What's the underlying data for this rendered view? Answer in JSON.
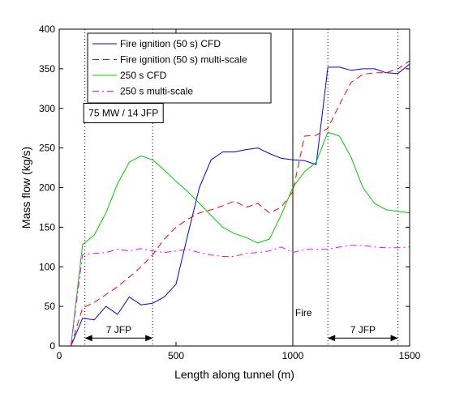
{
  "chart_data": {
    "type": "line",
    "title": "",
    "xlabel": "Length along tunnel (m)",
    "ylabel": "Mass flow (kg/s)",
    "xlim": [
      0,
      1500
    ],
    "ylim": [
      0,
      400
    ],
    "xticks": [
      0,
      500,
      1000,
      1500
    ],
    "yticks": [
      0,
      50,
      100,
      150,
      200,
      250,
      300,
      350,
      400
    ],
    "grid": false,
    "legend_position": "top-left",
    "series": [
      {
        "name": "Fire ignition (50 s) CFD",
        "color": "#0000ff",
        "dash": "solid",
        "x": [
          50,
          100,
          150,
          200,
          250,
          300,
          350,
          400,
          450,
          500,
          550,
          600,
          650,
          700,
          750,
          800,
          850,
          900,
          950,
          1000,
          1050,
          1100,
          1150,
          1200,
          1250,
          1300,
          1350,
          1400,
          1450,
          1500
        ],
        "y": [
          0,
          35,
          33,
          50,
          40,
          62,
          52,
          54,
          62,
          78,
          140,
          200,
          235,
          245,
          245,
          248,
          250,
          243,
          237,
          235,
          234,
          229,
          352,
          352,
          348,
          350,
          350,
          345,
          344,
          356
        ]
      },
      {
        "name": "Fire ignition (50 s) multi-scale",
        "color": "#ff0000",
        "dash": "dashed",
        "x": [
          50,
          100,
          150,
          200,
          250,
          300,
          350,
          400,
          450,
          500,
          550,
          600,
          650,
          700,
          750,
          800,
          850,
          900,
          950,
          1000,
          1050,
          1100,
          1150,
          1200,
          1250,
          1300,
          1350,
          1400,
          1450,
          1500
        ],
        "y": [
          0,
          48,
          55,
          65,
          75,
          87,
          100,
          115,
          135,
          150,
          160,
          168,
          172,
          177,
          183,
          175,
          180,
          168,
          175,
          195,
          265,
          266,
          275,
          305,
          333,
          343,
          345,
          345,
          350,
          360
        ]
      },
      {
        "name": "250 s CFD",
        "color": "#00cc00",
        "dash": "solid",
        "x": [
          50,
          100,
          150,
          200,
          250,
          300,
          350,
          400,
          450,
          500,
          550,
          600,
          650,
          700,
          750,
          800,
          850,
          900,
          950,
          1000,
          1050,
          1100,
          1150,
          1200,
          1250,
          1300,
          1350,
          1400,
          1450,
          1500
        ],
        "y": [
          0,
          128,
          140,
          168,
          205,
          232,
          240,
          235,
          222,
          208,
          195,
          180,
          165,
          150,
          142,
          137,
          130,
          135,
          165,
          200,
          220,
          232,
          270,
          265,
          238,
          200,
          180,
          172,
          170,
          168
        ]
      },
      {
        "name": "250 s multi-scale",
        "color": "#ff00ff",
        "dash": "dashdot",
        "x": [
          50,
          100,
          150,
          200,
          250,
          300,
          350,
          400,
          450,
          500,
          550,
          600,
          650,
          700,
          750,
          800,
          850,
          900,
          950,
          1000,
          1050,
          1100,
          1150,
          1200,
          1250,
          1300,
          1350,
          1400,
          1450,
          1500
        ],
        "y": [
          0,
          115,
          117,
          118,
          122,
          120,
          123,
          120,
          118,
          120,
          122,
          118,
          115,
          113,
          113,
          117,
          118,
          120,
          125,
          118,
          122,
          122,
          122,
          125,
          127,
          127,
          125,
          124,
          124,
          125
        ]
      }
    ],
    "vlines": [
      {
        "x": 110,
        "style": "dotted"
      },
      {
        "x": 400,
        "style": "dotted"
      },
      {
        "x": 1000,
        "style": "solid"
      },
      {
        "x": 1150,
        "style": "dotted"
      },
      {
        "x": 1450,
        "style": "dotted"
      }
    ],
    "annotations": [
      {
        "text": "75 MW / 14 JFP",
        "x": 275,
        "y": 290,
        "boxed": true
      },
      {
        "text": "Fire",
        "x": 1010,
        "y": 38,
        "boxed": false
      }
    ],
    "spans": [
      {
        "text": "7 JFP",
        "x0": 110,
        "x1": 400,
        "y": 10
      },
      {
        "text": "7 JFP",
        "x0": 1150,
        "x1": 1450,
        "y": 10
      }
    ]
  }
}
